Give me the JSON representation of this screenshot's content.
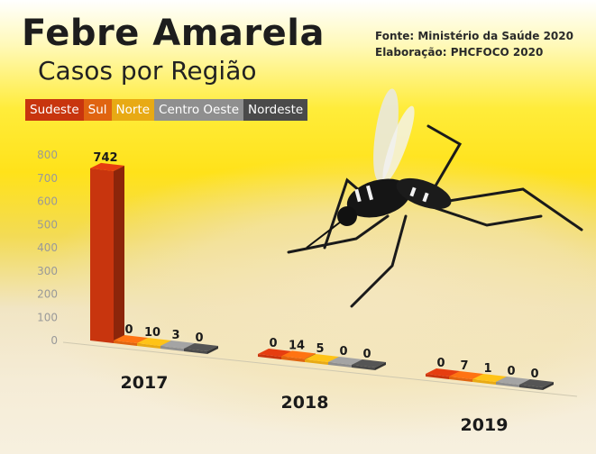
{
  "title": "Febre Amarela",
  "subtitle": "Casos por Região",
  "source": {
    "fonte": "Fonte: Ministério da Saúde 2020",
    "elaboracao": "Elaboração: PHCFOCO 2020"
  },
  "chart_data": {
    "type": "bar",
    "title": "Febre Amarela",
    "subtitle": "Casos por Região",
    "categories": [
      "2017",
      "2018",
      "2019"
    ],
    "series": [
      {
        "name": "Sudeste",
        "color": "#c8350e",
        "values": [
          742,
          0,
          0
        ]
      },
      {
        "name": "Sul",
        "color": "#e06410",
        "values": [
          0,
          14,
          7
        ]
      },
      {
        "name": "Norte",
        "color": "#e8aa14",
        "values": [
          10,
          5,
          1
        ]
      },
      {
        "name": "Centro Oeste",
        "color": "#8f8f8f",
        "values": [
          3,
          0,
          0
        ]
      },
      {
        "name": "Nordeste",
        "color": "#4a4a4a",
        "values": [
          0,
          0,
          0
        ]
      }
    ],
    "yticks": [
      0,
      100,
      200,
      300,
      400,
      500,
      600,
      700,
      800
    ],
    "ylim": [
      0,
      800
    ],
    "legend_position": "top-left",
    "grid": false,
    "three_d": true
  }
}
